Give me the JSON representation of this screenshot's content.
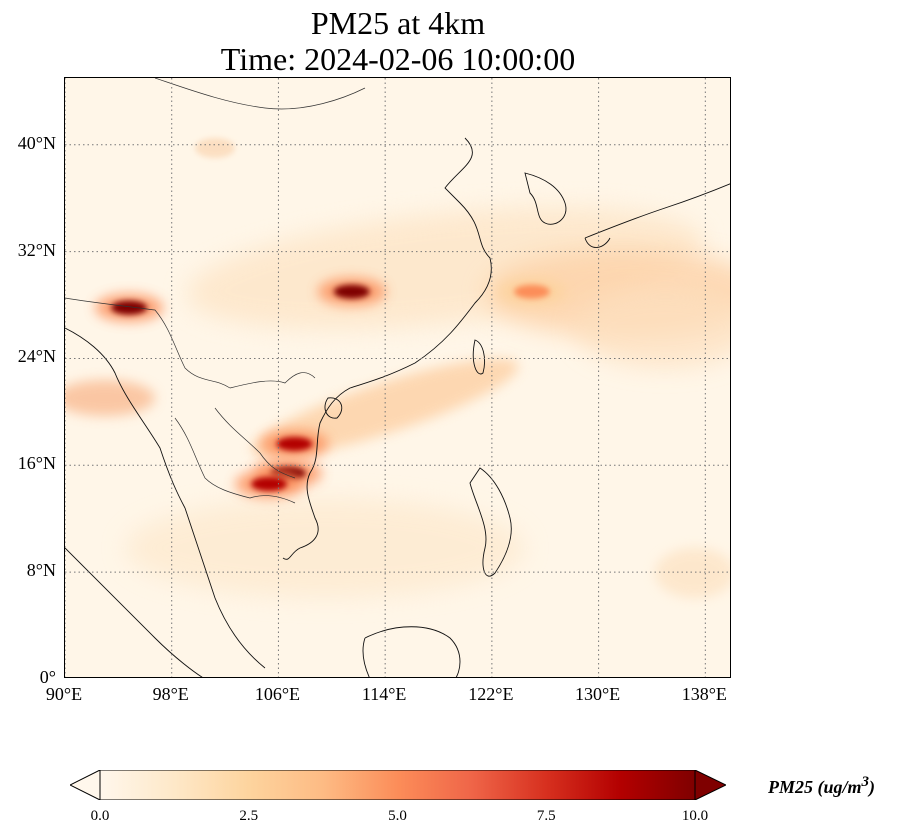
{
  "title_line1": "PM25 at 4km",
  "title_line2": "Time: 2024-02-06 10:00:00",
  "map": {
    "lon_range": [
      90,
      140
    ],
    "lat_range": [
      0,
      45
    ],
    "lon_ticks": [
      "90°E",
      "98°E",
      "106°E",
      "114°E",
      "122°E",
      "130°E",
      "138°E"
    ],
    "lat_ticks": [
      "0°",
      "8°N",
      "16°N",
      "24°N",
      "32°N",
      "40°N"
    ],
    "gridlines": "dotted",
    "coastlines": true,
    "borders": true
  },
  "colorbar": {
    "colormap": "OrRd",
    "ticks": [
      "0.0",
      "2.5",
      "5.0",
      "7.5",
      "10.0"
    ],
    "min": 0,
    "max": 10,
    "extend": "both",
    "label": "PM25 (ug/m",
    "label_sup": "3",
    "label_end": ")",
    "colors": [
      "#fff7ec",
      "#fee8c8",
      "#fdd49e",
      "#fdbb84",
      "#fc8d59",
      "#ef6548",
      "#d7301f",
      "#b30000",
      "#7f0000"
    ]
  },
  "plumes": [
    {
      "lon": 111.5,
      "lat": 29.0,
      "level": 10
    },
    {
      "lon": 94.8,
      "lat": 27.8,
      "level": 10
    },
    {
      "lon": 106.7,
      "lat": 15.4,
      "level": 9.5
    },
    {
      "lon": 105.3,
      "lat": 14.6,
      "level": 8.5
    },
    {
      "lon": 107.2,
      "lat": 17.6,
      "level": 8.5
    },
    {
      "lon": 125.0,
      "lat": 29.0,
      "level": 5
    }
  ]
}
